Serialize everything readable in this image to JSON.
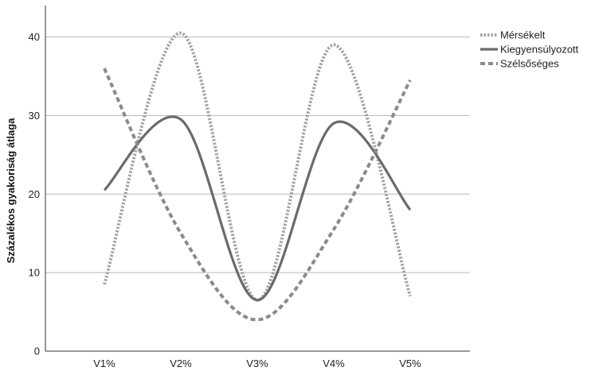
{
  "chart_data": {
    "type": "line",
    "title": "",
    "xlabel": "",
    "ylabel": "Százalékos gyakoriság átlaga",
    "categories": [
      "V1%",
      "V2%",
      "V3%",
      "V4%",
      "V5%"
    ],
    "ylim": [
      0,
      44
    ],
    "yticks": [
      0,
      10,
      20,
      30,
      40
    ],
    "grid": true,
    "legend_position": "top-right",
    "series": [
      {
        "name": "Mérsékelt",
        "values": [
          8.5,
          40.5,
          6.5,
          39,
          7
        ],
        "color": "#a3a3a3",
        "style": "dotted"
      },
      {
        "name": "Kiegyensúlyozott",
        "values": [
          20.5,
          29.5,
          6.5,
          29,
          18
        ],
        "color": "#6b6b6b",
        "style": "solid"
      },
      {
        "name": "Szélsőséges",
        "values": [
          36,
          15,
          4,
          15.5,
          34.5
        ],
        "color": "#8a8a8a",
        "style": "dashed"
      }
    ]
  }
}
